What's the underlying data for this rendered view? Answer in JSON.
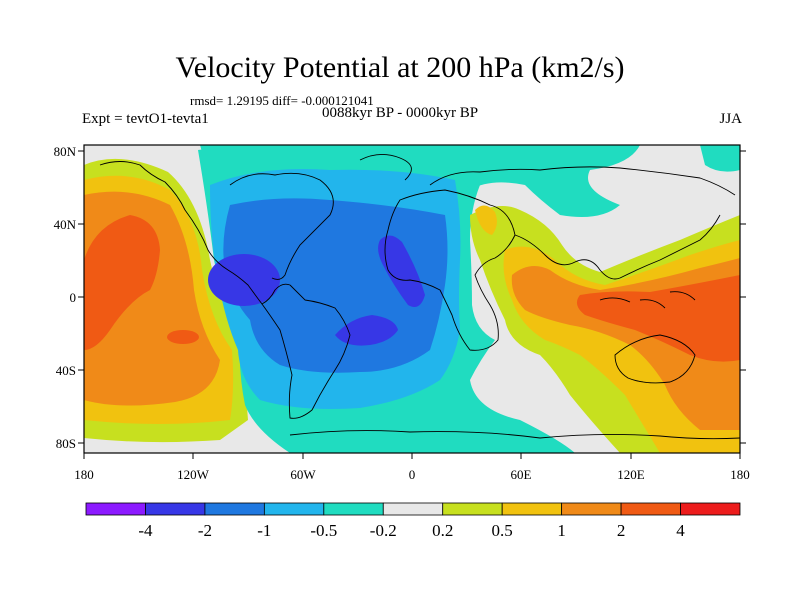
{
  "title": "Velocity Potential at 200 hPa (km2/s)",
  "stats_line": "rmsd= 1.29195 diff= -0.000121041",
  "left_label": "Expt = tevtO1-tevta1",
  "period_label": "0088kyr BP - 0000kyr BP",
  "season_label": "JJA",
  "lat_ticks": [
    "80N",
    "40N",
    "0",
    "40S",
    "80S"
  ],
  "lon_ticks": [
    "180",
    "120W",
    "60W",
    "0",
    "60E",
    "120E",
    "180"
  ],
  "colorbar": {
    "labels": [
      "-4",
      "-2",
      "-1",
      "-0.5",
      "-0.2",
      "0.2",
      "0.5",
      "1",
      "2",
      "4"
    ],
    "colors": [
      "#8c1aff",
      "#3737e6",
      "#1f78e0",
      "#22b5ec",
      "#20dcc0",
      "#e8e8e8",
      "#c7e01f",
      "#f1c20f",
      "#f08a18",
      "#f05a14",
      "#ec1c1c"
    ]
  },
  "map_colors": {
    "neg4": "#3737e6",
    "neg2": "#1f78e0",
    "neg1": "#22b5ec",
    "neg05": "#20dcc0",
    "neutral": "#e8e8e8",
    "pos02": "#c7e01f",
    "pos05": "#f1c20f",
    "pos1": "#f08a18",
    "pos2": "#f05a14"
  }
}
